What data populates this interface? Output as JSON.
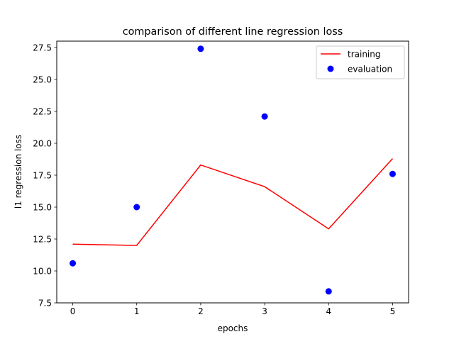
{
  "chart_data": {
    "type": "line",
    "title": "comparison of different line regression loss",
    "xlabel": "epochs",
    "ylabel": "l1 regression loss",
    "x": [
      0,
      1,
      2,
      3,
      4,
      5
    ],
    "xlim": [
      -0.25,
      5.25
    ],
    "ylim": [
      7.5,
      28.0
    ],
    "xticks": [
      0,
      1,
      2,
      3,
      4,
      5
    ],
    "yticks": [
      7.5,
      10.0,
      12.5,
      15.0,
      17.5,
      20.0,
      22.5,
      25.0,
      27.5
    ],
    "xtick_labels": [
      "0",
      "1",
      "2",
      "3",
      "4",
      "5"
    ],
    "ytick_labels": [
      "7.5",
      "10.0",
      "12.5",
      "15.0",
      "17.5",
      "20.0",
      "22.5",
      "25.0",
      "27.5"
    ],
    "grid": false,
    "legend_position": "top-right",
    "series": [
      {
        "name": "training",
        "kind": "line",
        "color": "#ff0000",
        "values": [
          12.1,
          12.0,
          18.3,
          16.6,
          13.3,
          18.8
        ]
      },
      {
        "name": "evaluation",
        "kind": "scatter",
        "color": "#0000ff",
        "values": [
          10.6,
          15.0,
          27.4,
          22.1,
          8.4,
          17.6
        ]
      }
    ]
  }
}
